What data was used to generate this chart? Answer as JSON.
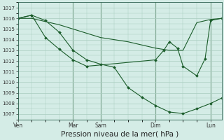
{
  "bg_color": "#d4ece6",
  "grid_color": "#a8ccbe",
  "line_color": "#1a5c2a",
  "marker_color": "#1a5c2a",
  "xlabel": "Pression niveau de la mer( hPa )",
  "xlabel_fontsize": 7.5,
  "ylim": [
    1006.5,
    1017.5
  ],
  "yticks": [
    1007,
    1008,
    1009,
    1010,
    1011,
    1012,
    1013,
    1014,
    1015,
    1016,
    1017
  ],
  "xtick_labels": [
    "Ven",
    "Mar",
    "Sam",
    "Dim",
    "Lun"
  ],
  "xtick_positions": [
    0,
    2,
    3,
    5,
    7
  ],
  "total_days": 7.4,
  "vline_positions": [
    0,
    2,
    3,
    5,
    7
  ],
  "line1_x": [
    0.0,
    0.5,
    1.0,
    1.5,
    2.0,
    2.5,
    3.0,
    3.5,
    4.0,
    4.5,
    5.0,
    5.5,
    6.0,
    6.5,
    7.0,
    7.4
  ],
  "line1_y": [
    1016.0,
    1016.3,
    1015.8,
    1014.7,
    1013.0,
    1012.1,
    1011.7,
    1011.4,
    1009.5,
    1008.6,
    1007.8,
    1007.2,
    1007.05,
    1007.5,
    1008.0,
    1008.5
  ],
  "line1_markers_x": [
    0.0,
    0.5,
    1.0,
    1.5,
    2.0,
    2.5,
    3.0,
    3.5,
    4.0,
    4.5,
    5.0,
    5.5,
    6.0,
    6.5,
    7.0,
    7.4
  ],
  "line1_markers_y": [
    1016.0,
    1016.3,
    1015.8,
    1014.7,
    1013.0,
    1012.1,
    1011.7,
    1011.4,
    1009.5,
    1008.6,
    1007.8,
    1007.2,
    1007.05,
    1007.5,
    1008.0,
    1008.5
  ],
  "line2_x": [
    0.0,
    0.5,
    1.0,
    1.5,
    2.0,
    2.5,
    3.0,
    4.0,
    4.5,
    5.0,
    5.5,
    6.0,
    6.5,
    7.0,
    7.4
  ],
  "line2_y": [
    1016.0,
    1016.0,
    1015.7,
    1015.4,
    1015.0,
    1014.6,
    1014.2,
    1013.8,
    1013.5,
    1013.2,
    1013.0,
    1013.0,
    1015.6,
    1015.9,
    1016.0
  ],
  "line3_x": [
    0.0,
    0.5,
    1.0,
    1.5,
    2.0,
    2.5,
    5.0,
    5.3,
    5.5,
    5.8,
    6.0,
    6.5,
    6.8,
    7.0,
    7.4
  ],
  "line3_y": [
    1016.0,
    1016.3,
    1014.2,
    1013.1,
    1012.1,
    1011.5,
    1012.1,
    1013.0,
    1013.8,
    1013.2,
    1011.5,
    1010.6,
    1012.2,
    1015.8,
    1016.0
  ]
}
